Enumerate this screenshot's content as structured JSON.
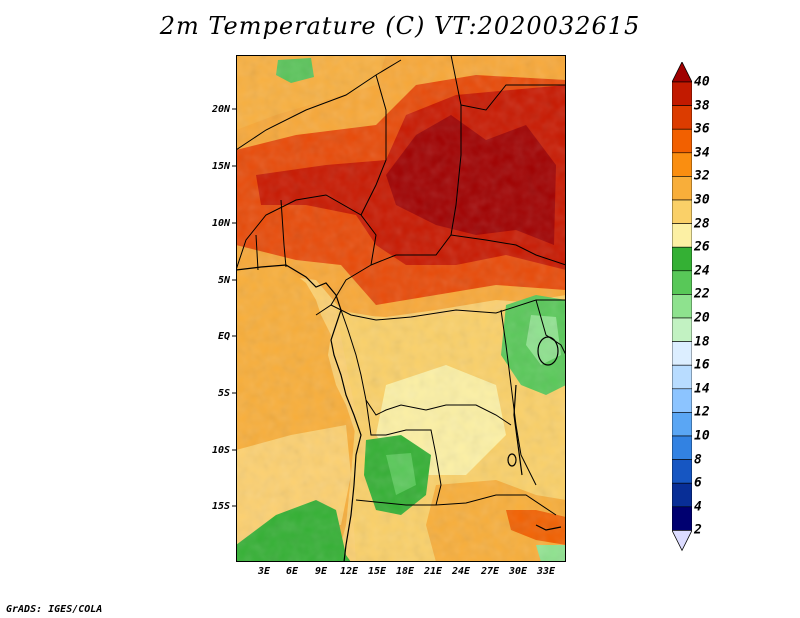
{
  "title": "2m Temperature (C) VT:2020032615",
  "credit": "GrADS: IGES/COLA",
  "lat_labels": [
    "20N",
    "15N",
    "10N",
    "5N",
    "EQ",
    "5S",
    "10S",
    "15S"
  ],
  "lon_labels": [
    "3E",
    "6E",
    "9E",
    "12E",
    "15E",
    "18E",
    "21E",
    "24E",
    "27E",
    "30E",
    "33E"
  ],
  "colorbar": {
    "labels": [
      "40",
      "38",
      "36",
      "34",
      "32",
      "30",
      "28",
      "26",
      "24",
      "22",
      "20",
      "18",
      "16",
      "14",
      "12",
      "10",
      "8",
      "6",
      "4",
      "2"
    ],
    "colors": [
      "#a00000",
      "#c21a00",
      "#dc3c00",
      "#f26000",
      "#fa8e10",
      "#f8ae3a",
      "#fad068",
      "#fcf0a4",
      "#34b034",
      "#58c858",
      "#8ee28e",
      "#c2f2c2",
      "#dceeff",
      "#b8dcff",
      "#8cc4ff",
      "#5aa6f4",
      "#3282e2",
      "#1656c2",
      "#082e96",
      "#000070",
      "#dcdcff"
    ]
  }
}
